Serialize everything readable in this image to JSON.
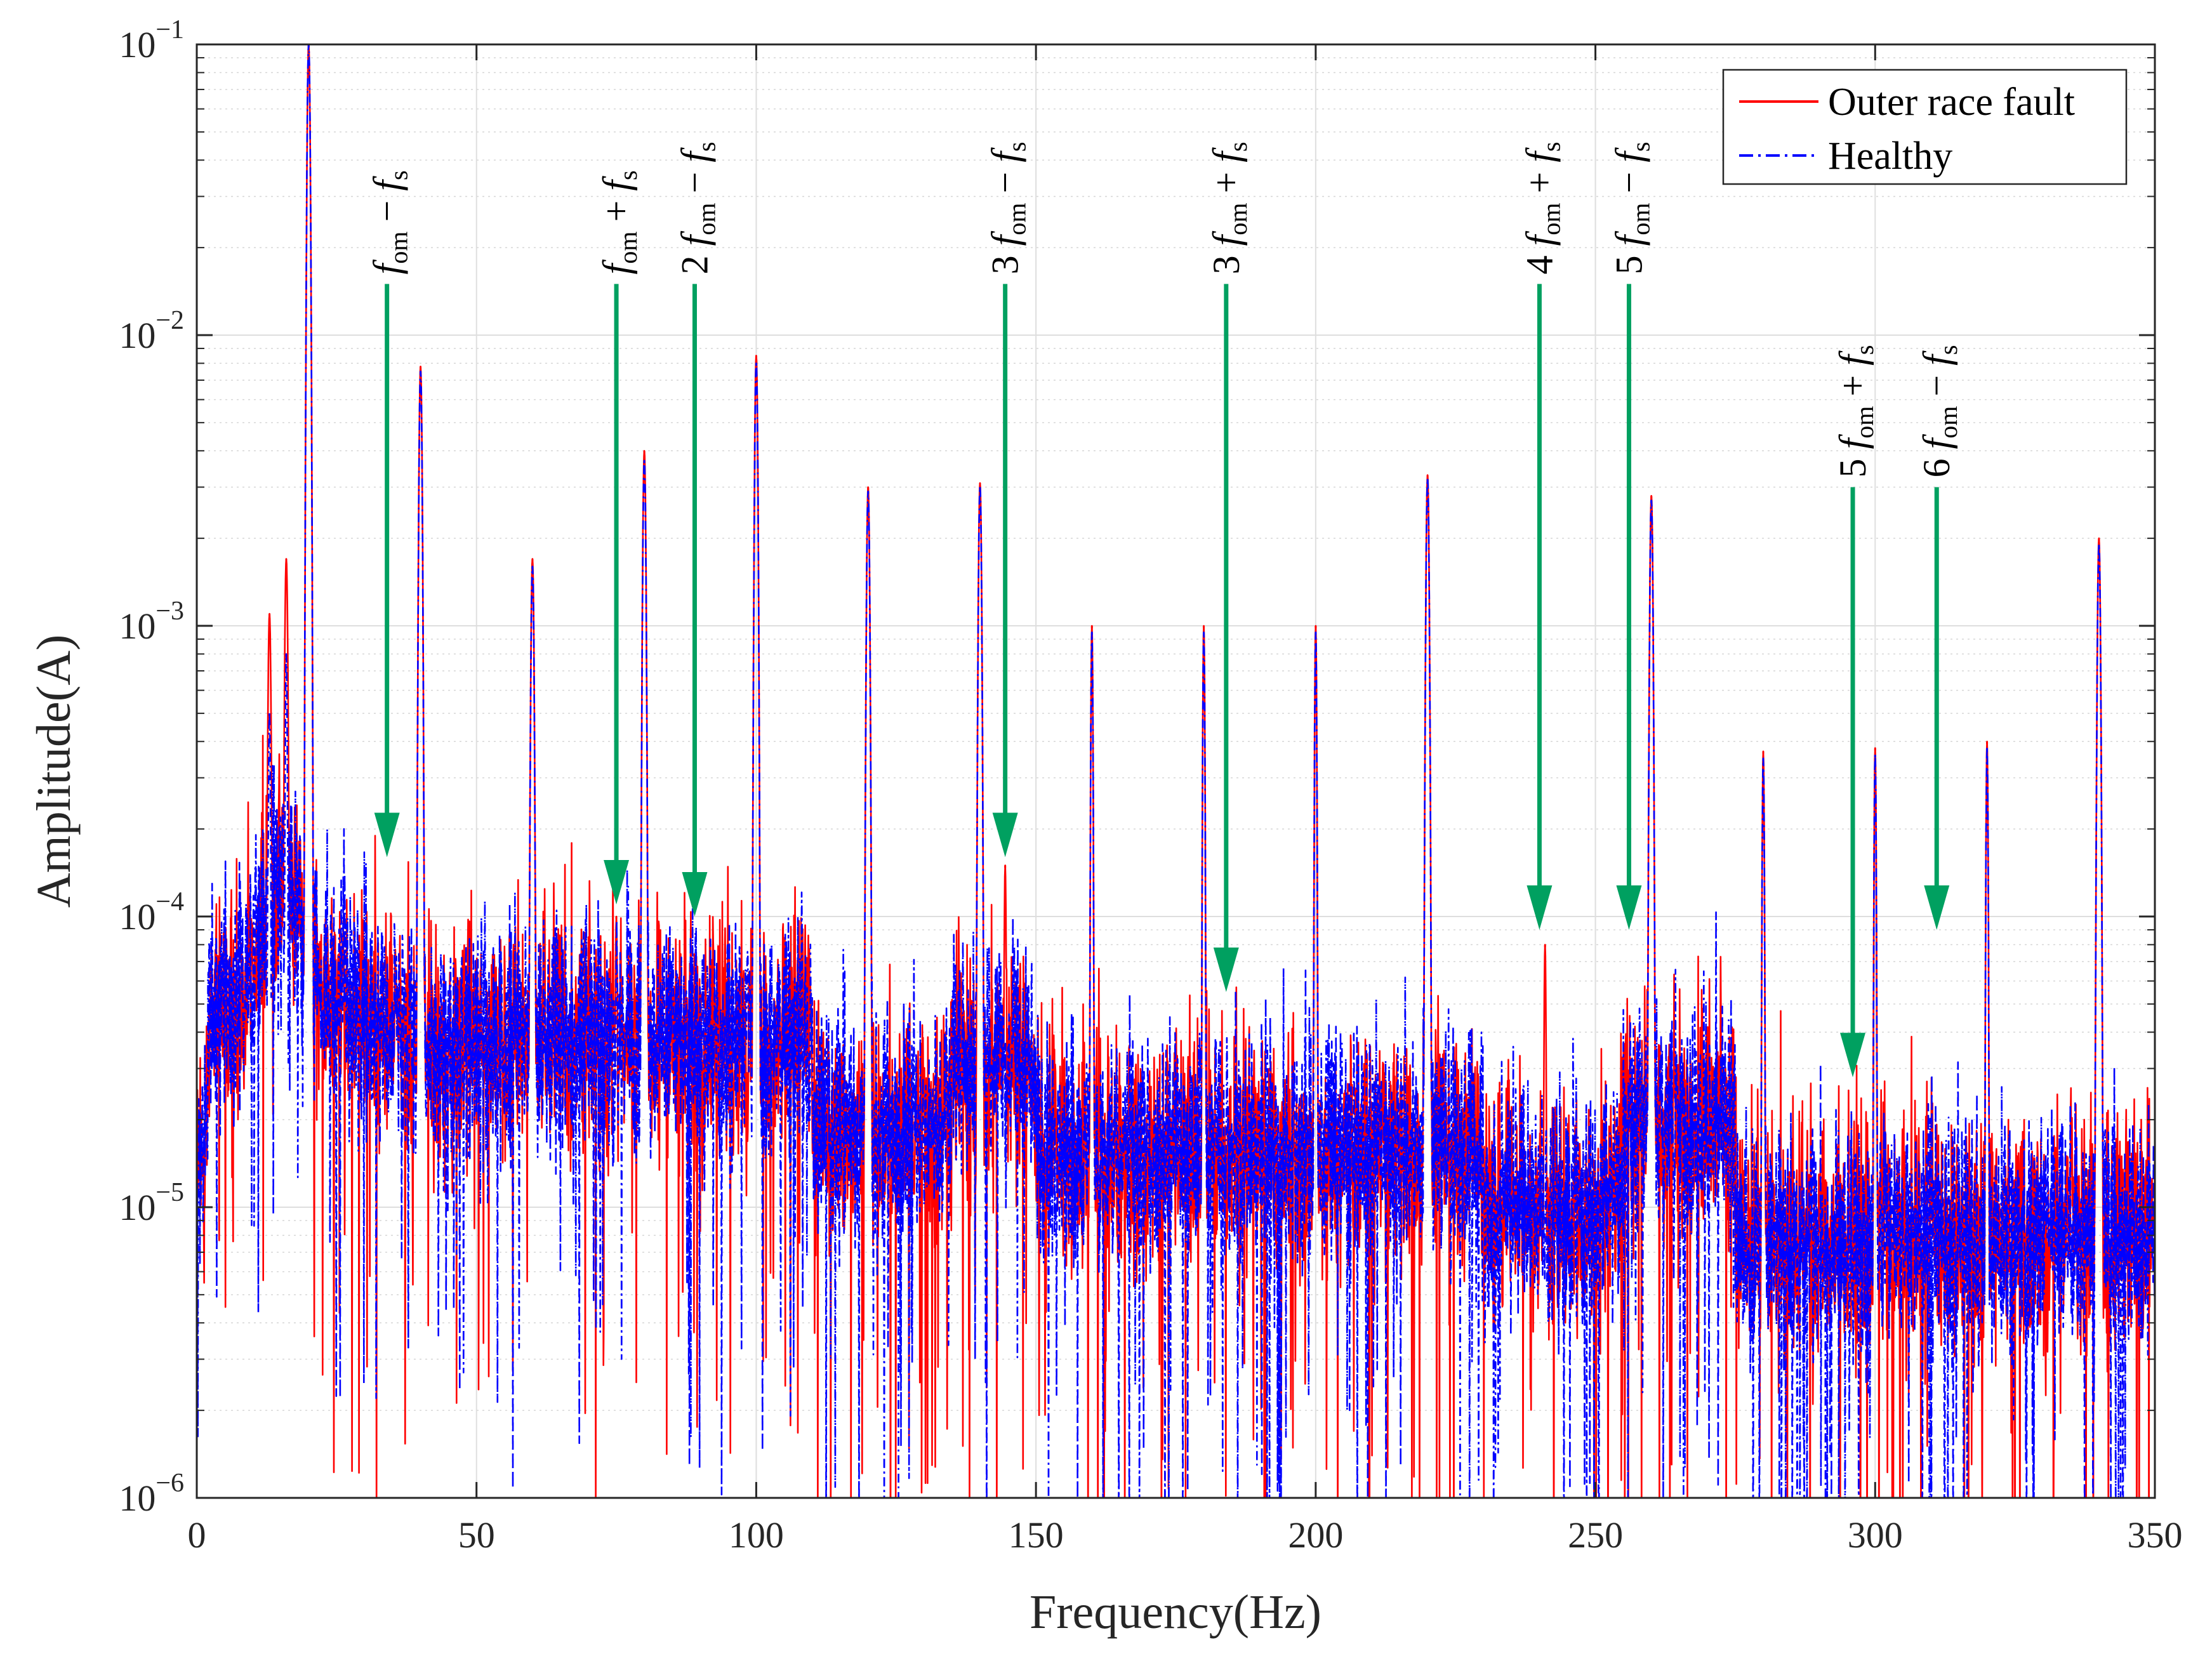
{
  "chart_data": {
    "type": "line",
    "title": "",
    "xlabel": "Frequency(Hz)",
    "ylabel": "Amplitude(A)",
    "xlim": [
      0,
      350
    ],
    "ylim": [
      1e-06,
      0.1
    ],
    "yscale": "log",
    "grid": true,
    "legend_position": "top-right",
    "xticks": [
      0,
      50,
      100,
      150,
      200,
      250,
      300,
      350
    ],
    "xtick_labels": [
      "0",
      "50",
      "100",
      "150",
      "200",
      "250",
      "300",
      "350"
    ],
    "yticks": [
      {
        "value": 0.1,
        "base": "10",
        "exp": "−1"
      },
      {
        "value": 0.01,
        "base": "10",
        "exp": "−2"
      },
      {
        "value": 0.001,
        "base": "10",
        "exp": "−3"
      },
      {
        "value": 0.0001,
        "base": "10",
        "exp": "−4"
      },
      {
        "value": 1e-05,
        "base": "10",
        "exp": "−5"
      },
      {
        "value": 1e-06,
        "base": "10",
        "exp": "−6"
      }
    ],
    "noise_floor": 2.5e-05,
    "series": [
      {
        "name": "Outer race fault",
        "color": "#ff0000",
        "style": "solid",
        "peaks": [
          {
            "x": 20,
            "y": 0.1
          },
          {
            "x": 40,
            "y": 0.0078
          },
          {
            "x": 60,
            "y": 0.0017
          },
          {
            "x": 80,
            "y": 0.004
          },
          {
            "x": 100,
            "y": 0.0085
          },
          {
            "x": 120,
            "y": 0.003
          },
          {
            "x": 140,
            "y": 0.0031
          },
          {
            "x": 160,
            "y": 0.001
          },
          {
            "x": 180,
            "y": 0.001
          },
          {
            "x": 200,
            "y": 0.001
          },
          {
            "x": 220,
            "y": 0.0033
          },
          {
            "x": 260,
            "y": 0.0028
          },
          {
            "x": 280,
            "y": 0.00037
          },
          {
            "x": 300,
            "y": 0.00038
          },
          {
            "x": 320,
            "y": 0.0004
          },
          {
            "x": 340,
            "y": 0.002
          },
          {
            "x": 16,
            "y": 0.0017
          },
          {
            "x": 13,
            "y": 0.0011
          },
          {
            "x": 144.5,
            "y": 0.00015
          },
          {
            "x": 75,
            "y": 0.0001
          },
          {
            "x": 241,
            "y": 8e-05
          }
        ]
      },
      {
        "name": "Healthy",
        "color": "#0000ff",
        "style": "dashdot",
        "peaks": [
          {
            "x": 20,
            "y": 0.1
          },
          {
            "x": 40,
            "y": 0.0075
          },
          {
            "x": 60,
            "y": 0.0016
          },
          {
            "x": 80,
            "y": 0.0037
          },
          {
            "x": 100,
            "y": 0.008
          },
          {
            "x": 120,
            "y": 0.0029
          },
          {
            "x": 140,
            "y": 0.003
          },
          {
            "x": 160,
            "y": 0.00095
          },
          {
            "x": 180,
            "y": 0.00095
          },
          {
            "x": 200,
            "y": 0.00095
          },
          {
            "x": 220,
            "y": 0.0032
          },
          {
            "x": 260,
            "y": 0.0027
          },
          {
            "x": 280,
            "y": 0.00035
          },
          {
            "x": 300,
            "y": 0.00036
          },
          {
            "x": 320,
            "y": 0.00038
          },
          {
            "x": 340,
            "y": 0.0019
          },
          {
            "x": 16,
            "y": 0.0008
          },
          {
            "x": 13,
            "y": 0.0005
          }
        ]
      }
    ],
    "annotations": [
      {
        "coef": "",
        "op": "−",
        "x": 34,
        "tip_y": 0.00016,
        "tail_y": 0.015
      },
      {
        "coef": "",
        "op": "+",
        "x": 75,
        "tip_y": 0.00011,
        "tail_y": 0.015
      },
      {
        "coef": "2",
        "op": "−",
        "x": 89,
        "tip_y": 0.0001,
        "tail_y": 0.015
      },
      {
        "coef": "3",
        "op": "−",
        "x": 144.5,
        "tip_y": 0.00016,
        "tail_y": 0.015
      },
      {
        "coef": "3",
        "op": "+",
        "x": 184,
        "tip_y": 5.5e-05,
        "tail_y": 0.015
      },
      {
        "coef": "4",
        "op": "+",
        "x": 240,
        "tip_y": 9e-05,
        "tail_y": 0.015
      },
      {
        "coef": "5",
        "op": "−",
        "x": 256,
        "tip_y": 9e-05,
        "tail_y": 0.015
      },
      {
        "coef": "5",
        "op": "+",
        "x": 296,
        "tip_y": 2.8e-05,
        "tail_y": 0.003
      },
      {
        "coef": "6",
        "op": "−",
        "x": 311,
        "tip_y": 9e-05,
        "tail_y": 0.003
      }
    ],
    "annotation_symbols": {
      "f": "f",
      "om": "om",
      "s": "s"
    },
    "annotation_color": "#00a060"
  }
}
